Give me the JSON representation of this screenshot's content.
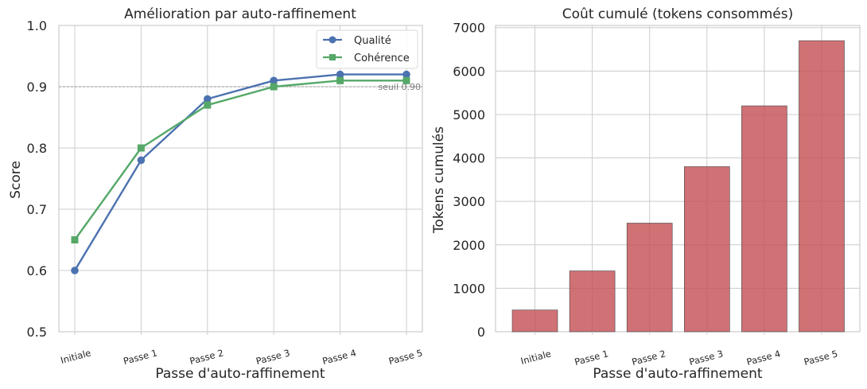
{
  "chart_data": [
    {
      "type": "line",
      "title": "Amélioration par auto-raffinement",
      "xlabel": "Passe d'auto-raffinement",
      "ylabel": "Score",
      "categories": [
        "Initiale",
        "Passe 1",
        "Passe 2",
        "Passe 3",
        "Passe 4",
        "Passe 5"
      ],
      "ylim": [
        0.5,
        1.0
      ],
      "yticks": [
        "0.5",
        "0.6",
        "0.7",
        "0.8",
        "0.9",
        "1.0"
      ],
      "grid": true,
      "legend_position": "top-right",
      "series": [
        {
          "name": "Qualité",
          "values": [
            0.6,
            0.78,
            0.88,
            0.91,
            0.92,
            0.92
          ],
          "color": "#4c72b0",
          "marker": "circle"
        },
        {
          "name": "Cohérence",
          "values": [
            0.65,
            0.8,
            0.87,
            0.9,
            0.91,
            0.91
          ],
          "color": "#55a868",
          "marker": "square"
        }
      ],
      "threshold": {
        "value": 0.9,
        "label": "seuil 0.90",
        "color": "#999999"
      }
    },
    {
      "type": "bar",
      "title": "Coût cumulé (tokens consommés)",
      "xlabel": "Passe d'auto-raffinement",
      "ylabel": "Tokens cumulés",
      "categories": [
        "Initiale",
        "Passe 1",
        "Passe 2",
        "Passe 3",
        "Passe 4",
        "Passe 5"
      ],
      "values": [
        500,
        1400,
        2500,
        3800,
        5200,
        6700
      ],
      "ylim": [
        0,
        7050
      ],
      "yticks": [
        "0",
        "1000",
        "2000",
        "3000",
        "4000",
        "5000",
        "6000",
        "7000"
      ],
      "grid": true,
      "color": "#c44e52"
    }
  ]
}
